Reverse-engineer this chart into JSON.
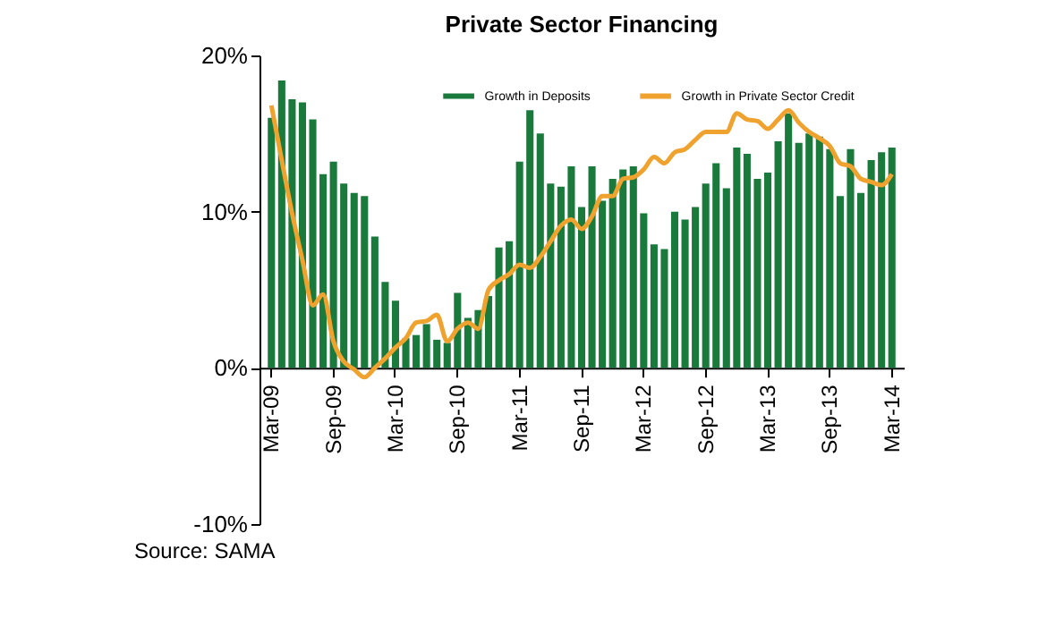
{
  "chart_data": {
    "type": "bar",
    "title": "Private Sector Financing",
    "categories": [
      "Mar-09",
      null,
      null,
      null,
      null,
      null,
      "Sep-09",
      null,
      null,
      null,
      null,
      null,
      "Mar-10",
      null,
      null,
      null,
      null,
      null,
      "Sep-10",
      null,
      null,
      null,
      null,
      null,
      "Mar-11",
      null,
      null,
      null,
      null,
      null,
      "Sep-11",
      null,
      null,
      null,
      null,
      null,
      "Mar-12",
      null,
      null,
      null,
      null,
      null,
      "Sep-12",
      null,
      null,
      null,
      null,
      null,
      "Mar-13",
      null,
      null,
      null,
      null,
      null,
      "Sep-13",
      null,
      null,
      null,
      null,
      null,
      "Mar-14"
    ],
    "series": [
      {
        "name": "Growth in Deposits",
        "type": "bar",
        "color": "#1a7a3c",
        "values": [
          16.0,
          18.4,
          17.2,
          17.0,
          15.9,
          12.4,
          13.2,
          11.8,
          11.2,
          11.0,
          8.4,
          5.5,
          4.3,
          1.9,
          2.1,
          2.8,
          1.8,
          1.6,
          4.8,
          3.2,
          3.7,
          4.6,
          7.7,
          8.1,
          13.2,
          16.5,
          15.0,
          11.8,
          11.6,
          12.9,
          10.3,
          12.9,
          10.7,
          12.1,
          12.7,
          12.9,
          9.9,
          7.9,
          7.6,
          10.0,
          9.5,
          10.3,
          11.8,
          13.1,
          11.5,
          14.1,
          13.7,
          12.1,
          12.5,
          14.5,
          16.3,
          14.4,
          15.0,
          14.8,
          14.0,
          11.0,
          14.0,
          11.2,
          13.3,
          13.8,
          14.1
        ]
      },
      {
        "name": "Growth in Private Sector Credit",
        "type": "line",
        "color": "#f0a22e",
        "values": [
          16.8,
          13.3,
          9.9,
          6.9,
          4.0,
          4.7,
          1.7,
          0.4,
          -0.1,
          -0.6,
          0.0,
          0.6,
          1.3,
          1.9,
          2.9,
          3.0,
          3.4,
          1.7,
          2.5,
          2.9,
          2.5,
          5.0,
          5.6,
          6.0,
          6.6,
          6.4,
          7.1,
          8.1,
          9.1,
          9.5,
          8.9,
          9.7,
          11.0,
          11.0,
          12.1,
          12.2,
          12.7,
          13.5,
          13.1,
          13.8,
          14.0,
          14.6,
          15.1,
          15.1,
          15.1,
          16.3,
          15.9,
          15.8,
          15.3,
          15.9,
          16.5,
          15.7,
          15.1,
          14.7,
          14.2,
          13.1,
          12.9,
          12.1,
          11.9,
          11.7,
          12.4
        ]
      }
    ],
    "ylim": [
      -10,
      20
    ],
    "yticks": [
      {
        "value": -10,
        "label": "-10%"
      },
      {
        "value": 0,
        "label": "0%"
      },
      {
        "value": 10,
        "label": "10%"
      },
      {
        "value": 20,
        "label": "20%"
      }
    ],
    "grid": false,
    "legend": "top",
    "annotations": [
      "Source: SAMA"
    ]
  }
}
